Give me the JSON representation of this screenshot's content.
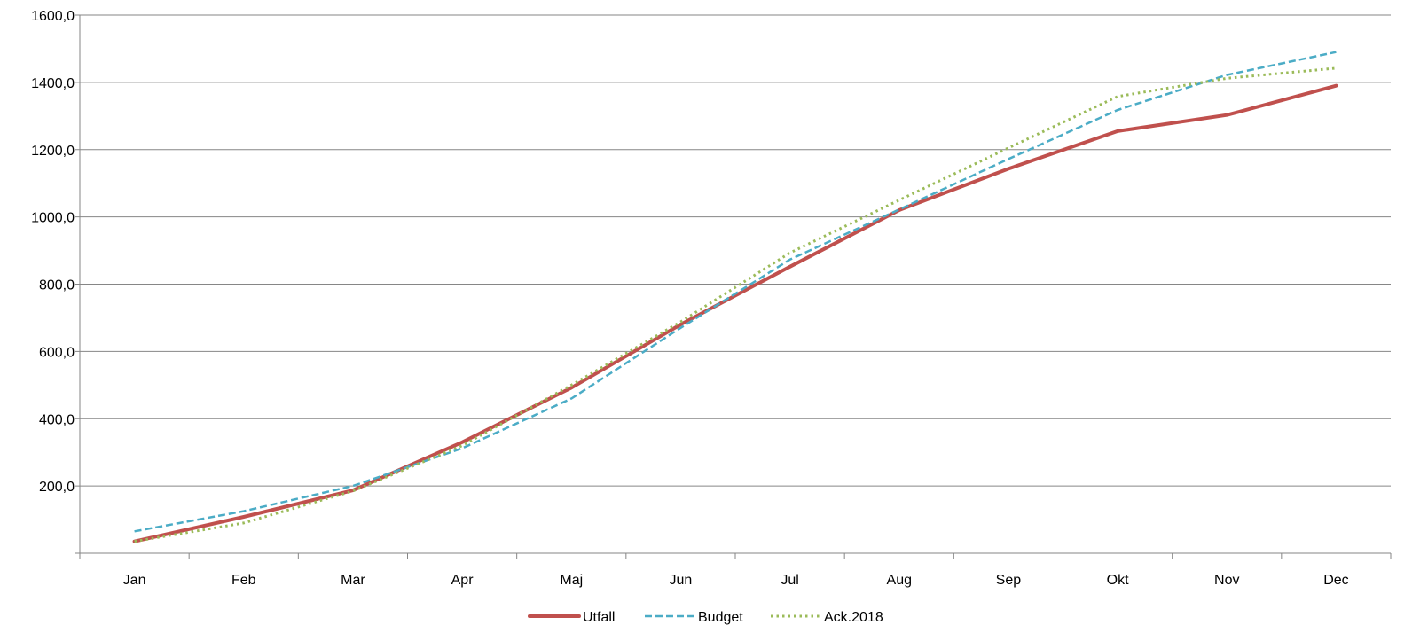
{
  "chart_data": {
    "type": "line",
    "categories": [
      "Jan",
      "Feb",
      "Mar",
      "Apr",
      "Maj",
      "Jun",
      "Jul",
      "Aug",
      "Sep",
      "Okt",
      "Nov",
      "Dec"
    ],
    "ylim": [
      0,
      1600
    ],
    "yticks": [
      200,
      400,
      600,
      800,
      1000,
      1200,
      1400,
      1600
    ],
    "ytick_labels": [
      "200,0",
      "400,0",
      "600,0",
      "800,0",
      "1000,0",
      "1200,0",
      "1400,0",
      "1600,0"
    ],
    "grid": true,
    "legend_position": "bottom",
    "series": [
      {
        "name": "Utfall",
        "color": "#C0504D",
        "style": "solid",
        "values": [
          35,
          108,
          187,
          330,
          492,
          680,
          852,
          1020,
          1143,
          1255,
          1303,
          1390
        ]
      },
      {
        "name": "Budget",
        "color": "#4BACC6",
        "style": "dashed",
        "values": [
          65,
          125,
          200,
          312,
          460,
          670,
          873,
          1022,
          1172,
          1318,
          1422,
          1490
        ]
      },
      {
        "name": "Ack.2018",
        "color": "#9BBB59",
        "style": "dotted",
        "values": [
          35,
          90,
          185,
          320,
          500,
          688,
          893,
          1050,
          1205,
          1358,
          1412,
          1442
        ]
      }
    ]
  }
}
